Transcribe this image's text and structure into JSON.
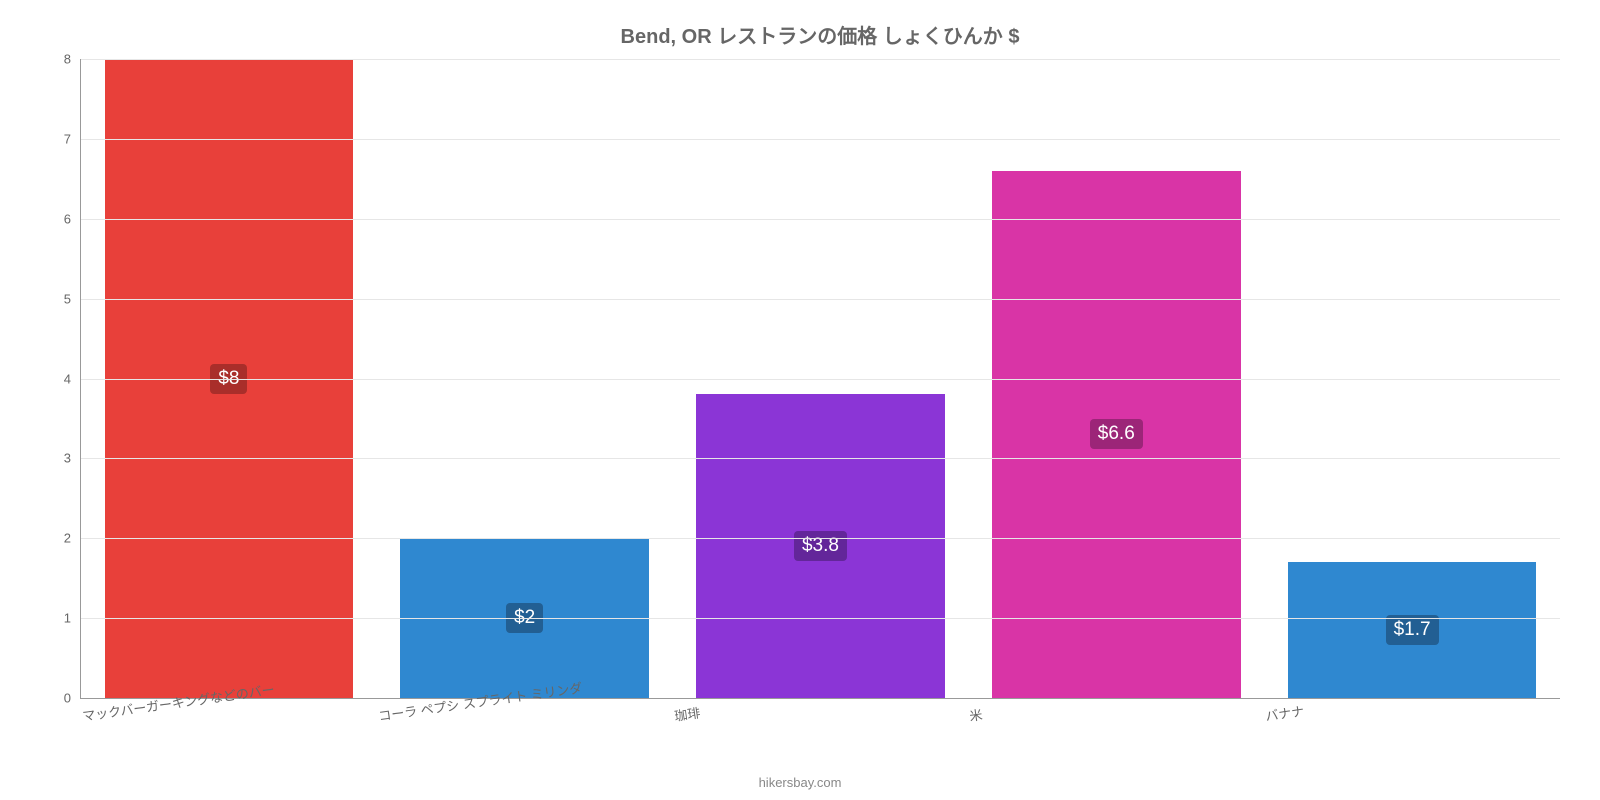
{
  "chart": {
    "type": "bar",
    "title": "Bend, OR レストランの価格 しょくひんか $",
    "title_fontsize": 20,
    "title_color": "#666666",
    "background_color": "#ffffff",
    "grid_color": "#e6e6e6",
    "axis_color": "#999999",
    "tick_color": "#666666",
    "ylim": [
      0,
      8
    ],
    "ytick_step": 1,
    "yticks": [
      0,
      1,
      2,
      3,
      4,
      5,
      6,
      7,
      8
    ],
    "bar_width_pct": 84,
    "label_fontsize": 19,
    "xlabel_fontsize": 13,
    "xlabel_rotate_deg": -8,
    "value_label_bg_darken": 0.72,
    "categories": [
      "マックバーガーキングなどのバー",
      "コーラ ペプシ スプライト ミリンダ",
      "珈琲",
      "米",
      "バナナ"
    ],
    "values": [
      8,
      2,
      3.8,
      6.6,
      1.7
    ],
    "value_labels": [
      "$8",
      "$2",
      "$3.8",
      "$6.6",
      "$1.7"
    ],
    "bar_colors": [
      "#e8403a",
      "#2f88d0",
      "#8b35d6",
      "#d934a6",
      "#2f88d0"
    ],
    "label_bg_colors": [
      "#a92e2a",
      "#225f93",
      "#63269a",
      "#9c2578",
      "#225f93"
    ]
  },
  "footer": "hikersbay.com"
}
